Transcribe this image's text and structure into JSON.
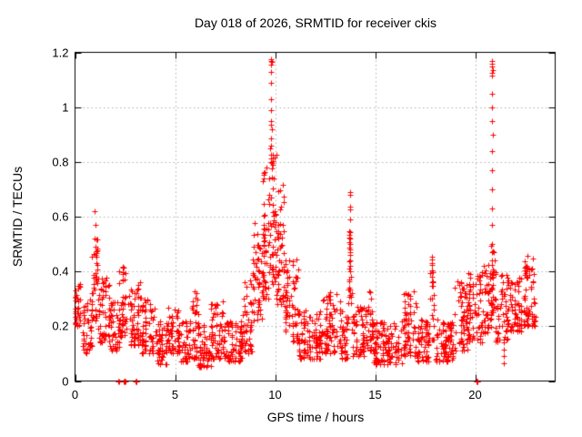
{
  "chart": {
    "title": "Day 018 of 2026, SRMTID for receiver ckis",
    "xlabel": "GPS time / hours",
    "ylabel": "SRMTID / TECUs"
  },
  "chart_data": {
    "type": "scatter",
    "title": "Day 018 of 2026, SRMTID for receiver ckis",
    "xlabel": "GPS time / hours",
    "ylabel": "SRMTID / TECUs",
    "xlim": [
      0,
      24
    ],
    "ylim": [
      0,
      1.2
    ],
    "xticks": {
      "values": [
        0,
        5,
        10,
        15,
        20
      ],
      "labels": [
        "0",
        "5",
        "10",
        "15",
        "20"
      ]
    },
    "yticks": {
      "values": [
        0,
        0.2,
        0.4,
        0.6,
        0.8,
        1.0,
        1.2
      ],
      "labels": [
        "0",
        "0.2",
        "0.4",
        "0.6",
        "0.8",
        "1",
        "1.2"
      ]
    },
    "grid": {
      "show": true,
      "style": "dotted",
      "color": "#b0b0b0"
    },
    "axis_color": "#000000",
    "background": "#ffffff",
    "legend": "none",
    "marker": {
      "symbol": "plus",
      "color": "#ff0000",
      "size": 7
    },
    "seed": 2026018,
    "band_profile_format": [
      "t_start_hours",
      "t_end_hours",
      "y_low_TECUs",
      "y_high_TECUs",
      "n_points"
    ],
    "band_profile": [
      [
        0.0,
        0.35,
        0.2,
        0.36,
        35
      ],
      [
        0.35,
        0.85,
        0.1,
        0.3,
        45
      ],
      [
        0.85,
        1.15,
        0.22,
        0.52,
        35
      ],
      [
        1.15,
        1.75,
        0.14,
        0.38,
        55
      ],
      [
        1.75,
        2.2,
        0.11,
        0.3,
        40
      ],
      [
        2.2,
        2.65,
        0.16,
        0.43,
        40
      ],
      [
        2.65,
        3.35,
        0.13,
        0.36,
        60
      ],
      [
        3.35,
        4.1,
        0.1,
        0.3,
        65
      ],
      [
        4.1,
        4.6,
        0.06,
        0.22,
        45
      ],
      [
        4.6,
        5.3,
        0.1,
        0.27,
        60
      ],
      [
        5.3,
        5.75,
        0.07,
        0.22,
        40
      ],
      [
        5.75,
        6.15,
        0.08,
        0.33,
        38
      ],
      [
        6.15,
        6.8,
        0.05,
        0.22,
        55
      ],
      [
        6.8,
        7.4,
        0.08,
        0.3,
        55
      ],
      [
        7.4,
        8.35,
        0.07,
        0.22,
        80
      ],
      [
        8.35,
        8.85,
        0.1,
        0.37,
        45
      ],
      [
        8.85,
        9.35,
        0.22,
        0.58,
        50
      ],
      [
        9.35,
        9.75,
        0.3,
        0.78,
        55
      ],
      [
        9.75,
        10.05,
        0.35,
        0.85,
        45
      ],
      [
        10.05,
        10.45,
        0.28,
        0.72,
        50
      ],
      [
        10.45,
        10.8,
        0.18,
        0.45,
        35
      ],
      [
        10.8,
        11.15,
        0.14,
        0.45,
        35
      ],
      [
        11.15,
        12.35,
        0.08,
        0.26,
        100
      ],
      [
        12.35,
        13.35,
        0.1,
        0.33,
        85
      ],
      [
        13.35,
        13.65,
        0.08,
        0.25,
        28
      ],
      [
        13.65,
        13.85,
        0.28,
        0.55,
        22
      ],
      [
        13.85,
        14.45,
        0.09,
        0.28,
        55
      ],
      [
        14.45,
        14.95,
        0.11,
        0.33,
        45
      ],
      [
        14.95,
        16.35,
        0.06,
        0.22,
        120
      ],
      [
        16.35,
        17.1,
        0.09,
        0.33,
        65
      ],
      [
        17.1,
        17.75,
        0.07,
        0.23,
        58
      ],
      [
        17.75,
        17.95,
        0.15,
        0.45,
        20
      ],
      [
        17.95,
        18.95,
        0.07,
        0.23,
        85
      ],
      [
        18.95,
        19.65,
        0.11,
        0.37,
        60
      ],
      [
        19.65,
        20.35,
        0.14,
        0.4,
        65
      ],
      [
        20.35,
        20.8,
        0.17,
        0.43,
        45
      ],
      [
        20.8,
        21.0,
        0.25,
        0.5,
        30
      ],
      [
        21.0,
        21.65,
        0.14,
        0.4,
        55
      ],
      [
        21.65,
        22.35,
        0.18,
        0.38,
        65
      ],
      [
        22.35,
        23.05,
        0.2,
        0.46,
        65
      ]
    ],
    "feature_points": {
      "spike_1h": [
        [
          0.98,
          0.62
        ],
        [
          1.0,
          0.57
        ],
        [
          0.99,
          0.52
        ],
        [
          1.01,
          0.49
        ],
        [
          1.0,
          0.46
        ]
      ],
      "spike_9_8h": [
        [
          9.78,
          1.175
        ],
        [
          9.8,
          1.17
        ],
        [
          9.82,
          1.165
        ],
        [
          9.79,
          1.155
        ],
        [
          9.81,
          1.13
        ],
        [
          9.8,
          1.09
        ],
        [
          9.81,
          1.03
        ],
        [
          9.79,
          0.99
        ],
        [
          9.8,
          0.95
        ],
        [
          9.78,
          0.935
        ],
        [
          9.82,
          0.92
        ],
        [
          9.8,
          0.885
        ],
        [
          9.79,
          0.86
        ],
        [
          9.81,
          0.825
        ],
        [
          9.8,
          0.8
        ]
      ],
      "spike_13_8h": [
        [
          13.74,
          0.69
        ],
        [
          13.76,
          0.68
        ],
        [
          13.75,
          0.635
        ],
        [
          13.77,
          0.625
        ],
        [
          13.75,
          0.59
        ],
        [
          13.76,
          0.545
        ],
        [
          13.74,
          0.52
        ],
        [
          13.77,
          0.5
        ],
        [
          13.75,
          0.48
        ],
        [
          13.76,
          0.46
        ],
        [
          13.74,
          0.44
        ],
        [
          13.76,
          0.42
        ],
        [
          13.75,
          0.4
        ]
      ],
      "spike_17_8h": [
        [
          17.82,
          0.455
        ],
        [
          17.84,
          0.43
        ],
        [
          17.83,
          0.405
        ],
        [
          17.85,
          0.38
        ],
        [
          17.84,
          0.36
        ]
      ],
      "spike_20_9h": [
        [
          20.84,
          1.17
        ],
        [
          20.86,
          1.16
        ],
        [
          20.85,
          1.15
        ],
        [
          20.87,
          1.135
        ],
        [
          20.85,
          1.125
        ],
        [
          20.86,
          1.115
        ],
        [
          20.85,
          1.05
        ],
        [
          20.86,
          1.0
        ],
        [
          20.85,
          0.95
        ],
        [
          20.87,
          0.9
        ],
        [
          20.85,
          0.84
        ],
        [
          20.86,
          0.77
        ],
        [
          20.85,
          0.7
        ],
        [
          20.86,
          0.63
        ],
        [
          20.85,
          0.57
        ],
        [
          20.86,
          0.5
        ],
        [
          20.85,
          0.44
        ],
        [
          20.86,
          0.38
        ]
      ],
      "dip_21_4h": [
        [
          21.42,
          0.065
        ],
        [
          21.44,
          0.09
        ],
        [
          21.45,
          0.115
        ],
        [
          21.43,
          0.14
        ],
        [
          21.46,
          0.16
        ]
      ],
      "zero_clusters": [
        [
          2.17,
          0
        ],
        [
          2.21,
          0
        ],
        [
          2.44,
          0
        ],
        [
          2.46,
          0
        ],
        [
          2.48,
          0
        ],
        [
          2.5,
          0
        ],
        [
          3.03,
          0
        ],
        [
          3.05,
          0
        ],
        [
          3.07,
          0
        ],
        [
          3.09,
          0
        ],
        [
          20.07,
          0
        ],
        [
          20.09,
          0
        ],
        [
          20.11,
          0
        ],
        [
          20.13,
          0
        ]
      ]
    }
  }
}
